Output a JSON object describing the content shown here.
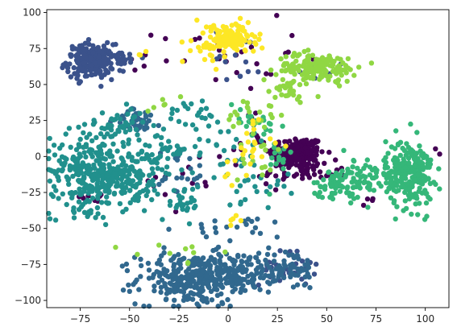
{
  "chart_data": {
    "type": "scatter",
    "title": "",
    "xlabel": "",
    "ylabel": "",
    "xlim": [
      -92,
      112
    ],
    "ylim": [
      -105,
      102
    ],
    "xticks": [
      -75,
      -50,
      -25,
      0,
      25,
      50,
      75,
      100
    ],
    "yticks": [
      -100,
      -75,
      -50,
      -25,
      0,
      25,
      50,
      75,
      100
    ],
    "xtick_labels": [
      "−75",
      "−50",
      "−25",
      "0",
      "25",
      "50",
      "75",
      "100"
    ],
    "ytick_labels": [
      "−100",
      "−75",
      "−50",
      "−25",
      "0",
      "25",
      "50",
      "75",
      "100"
    ],
    "grid": false,
    "legend": "none",
    "colormap": "viridis",
    "series": [
      {
        "color": "#440154",
        "clusters": [
          {
            "x": 35,
            "y": 2,
            "sx": 7,
            "sy": 6,
            "n": 190
          },
          {
            "x": 38,
            "y": -12,
            "sx": 12,
            "sy": 3,
            "n": 45
          },
          {
            "x": 70,
            "y": -30,
            "sx": 2,
            "sy": 2,
            "n": 4
          },
          {
            "x": 105,
            "y": 2,
            "sx": 2,
            "sy": 2,
            "n": 3
          },
          {
            "x": 0,
            "y": 70,
            "sx": 18,
            "sy": 12,
            "n": 28
          },
          {
            "x": -20,
            "y": -15,
            "sx": 10,
            "sy": 15,
            "n": 14
          },
          {
            "x": -68,
            "y": -28,
            "sx": 3,
            "sy": 3,
            "n": 8
          },
          {
            "x": 12,
            "y": 10,
            "sx": 8,
            "sy": 10,
            "n": 12
          },
          {
            "x": -45,
            "y": 67,
            "sx": 3,
            "sy": 3,
            "n": 4
          }
        ]
      },
      {
        "color": "#3b528b",
        "clusters": [
          {
            "x": -70,
            "y": 66,
            "sx": 6,
            "sy": 6,
            "n": 190
          },
          {
            "x": -55,
            "y": 68,
            "sx": 6,
            "sy": 3,
            "n": 30
          },
          {
            "x": 5,
            "y": 70,
            "sx": 6,
            "sy": 10,
            "n": 15
          },
          {
            "x": 42,
            "y": 60,
            "sx": 5,
            "sy": 3,
            "n": 8
          },
          {
            "x": 30,
            "y": -78,
            "sx": 7,
            "sy": 6,
            "n": 30
          }
        ]
      },
      {
        "color": "#31688e",
        "clusters": [
          {
            "x": -18,
            "y": -85,
            "sx": 14,
            "sy": 9,
            "n": 280
          },
          {
            "x": 5,
            "y": -80,
            "sx": 12,
            "sy": 7,
            "n": 120
          },
          {
            "x": 30,
            "y": -78,
            "sx": 8,
            "sy": 7,
            "n": 60
          },
          {
            "x": -45,
            "y": 25,
            "sx": 6,
            "sy": 4,
            "n": 35
          },
          {
            "x": -25,
            "y": -10,
            "sx": 8,
            "sy": 8,
            "n": 20
          },
          {
            "x": 10,
            "y": -50,
            "sx": 15,
            "sy": 4,
            "n": 20
          }
        ]
      },
      {
        "color": "#21908d",
        "clusters": [
          {
            "x": -70,
            "y": -10,
            "sx": 10,
            "sy": 14,
            "n": 280
          },
          {
            "x": -50,
            "y": -15,
            "sx": 8,
            "sy": 10,
            "n": 120
          },
          {
            "x": -55,
            "y": 22,
            "sx": 6,
            "sy": 6,
            "n": 40
          },
          {
            "x": -30,
            "y": 2,
            "sx": 8,
            "sy": 8,
            "n": 40
          },
          {
            "x": -20,
            "y": 30,
            "sx": 8,
            "sy": 5,
            "n": 20
          },
          {
            "x": -22,
            "y": -32,
            "sx": 4,
            "sy": 6,
            "n": 25
          },
          {
            "x": 0,
            "y": 5,
            "sx": 10,
            "sy": 10,
            "n": 30
          },
          {
            "x": 15,
            "y": -20,
            "sx": 8,
            "sy": 8,
            "n": 20
          }
        ]
      },
      {
        "color": "#35b779",
        "clusters": [
          {
            "x": 92,
            "y": -12,
            "sx": 6,
            "sy": 12,
            "n": 220
          },
          {
            "x": 70,
            "y": -15,
            "sx": 10,
            "sy": 7,
            "n": 90
          },
          {
            "x": 55,
            "y": -20,
            "sx": 6,
            "sy": 5,
            "n": 40
          },
          {
            "x": 12,
            "y": 25,
            "sx": 8,
            "sy": 6,
            "n": 20
          },
          {
            "x": 25,
            "y": -5,
            "sx": 6,
            "sy": 8,
            "n": 15
          }
        ]
      },
      {
        "color": "#90d743",
        "clusters": [
          {
            "x": 45,
            "y": 62,
            "sx": 10,
            "sy": 5,
            "n": 160
          },
          {
            "x": 30,
            "y": 45,
            "sx": 6,
            "sy": 4,
            "n": 30
          },
          {
            "x": 15,
            "y": 30,
            "sx": 8,
            "sy": 6,
            "n": 20
          },
          {
            "x": 15,
            "y": 0,
            "sx": 5,
            "sy": 10,
            "n": 15
          },
          {
            "x": -25,
            "y": -65,
            "sx": 10,
            "sy": 4,
            "n": 10
          },
          {
            "x": -35,
            "y": 35,
            "sx": 3,
            "sy": 3,
            "n": 6
          }
        ]
      },
      {
        "color": "#fde725",
        "clusters": [
          {
            "x": 2,
            "y": 82,
            "sx": 6,
            "sy": 5,
            "n": 120
          },
          {
            "x": -8,
            "y": 78,
            "sx": 5,
            "sy": 7,
            "n": 35
          },
          {
            "x": 8,
            "y": 5,
            "sx": 7,
            "sy": 12,
            "n": 25
          },
          {
            "x": 3,
            "y": -45,
            "sx": 2,
            "sy": 2,
            "n": 5
          },
          {
            "x": -45,
            "y": 72,
            "sx": 2,
            "sy": 2,
            "n": 3
          }
        ]
      }
    ]
  }
}
